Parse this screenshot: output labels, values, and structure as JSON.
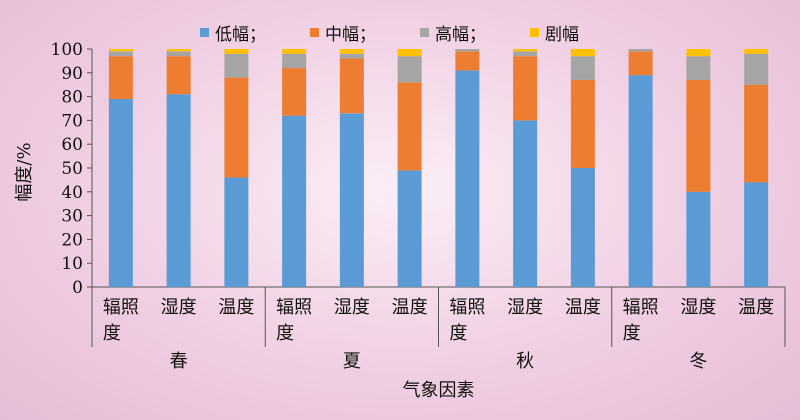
{
  "chart_data": {
    "type": "bar",
    "stacked": true,
    "series": [
      {
        "name": "低幅；",
        "color": "#5b9bd5",
        "values": [
          79,
          81,
          46,
          72,
          73,
          49,
          91,
          70,
          50,
          89,
          40,
          44
        ]
      },
      {
        "name": "中幅；",
        "color": "#ed7d31",
        "values": [
          18,
          16,
          42,
          20,
          23,
          37,
          8,
          27,
          37,
          10,
          47,
          41
        ]
      },
      {
        "name": "高幅；",
        "color": "#a5a5a5",
        "values": [
          2,
          2,
          10,
          6,
          2,
          11,
          1,
          2,
          10,
          1,
          10,
          13
        ]
      },
      {
        "name": "剧幅",
        "color": "#ffc000",
        "values": [
          1,
          1,
          2,
          2,
          2,
          3,
          0,
          1,
          3,
          0,
          3,
          2
        ]
      }
    ],
    "categories": [
      "辐照度",
      "湿度",
      "温度",
      "辐照度",
      "湿度",
      "温度",
      "辐照度",
      "湿度",
      "温度",
      "辐照度",
      "湿度",
      "温度"
    ],
    "groups": [
      {
        "label": "春",
        "categories": [
          0,
          1,
          2
        ]
      },
      {
        "label": "夏",
        "categories": [
          3,
          4,
          5
        ]
      },
      {
        "label": "秋",
        "categories": [
          6,
          7,
          8
        ]
      },
      {
        "label": "冬",
        "categories": [
          9,
          10,
          11
        ]
      }
    ],
    "ylabel": "幅度/%",
    "xlabel": "气象因素",
    "ylim": [
      0,
      100
    ],
    "yticks": [
      "0",
      "10",
      "20",
      "30",
      "40",
      "50",
      "60",
      "70",
      "80",
      "90",
      "100"
    ],
    "legend_position": "top",
    "grid": false
  }
}
